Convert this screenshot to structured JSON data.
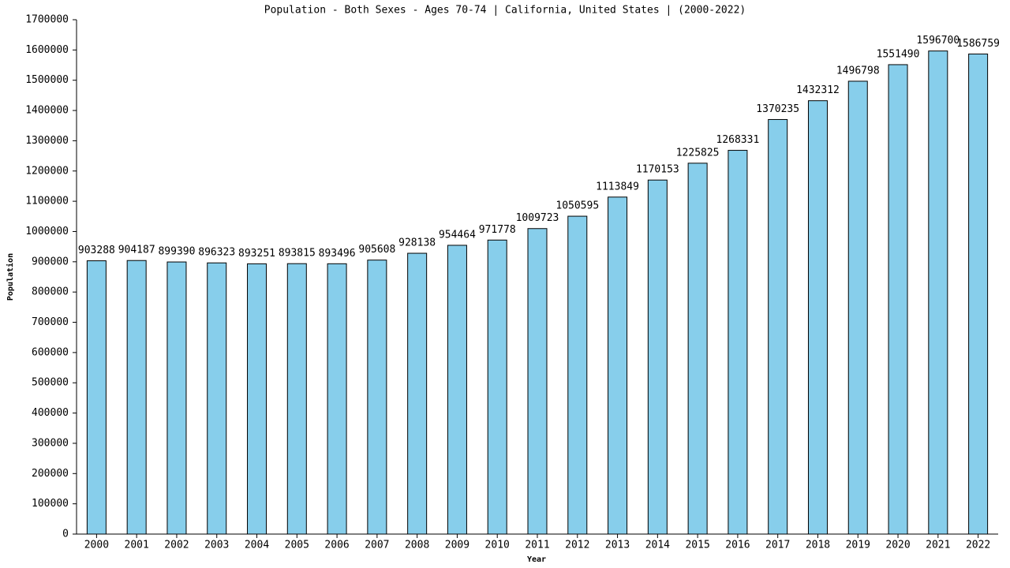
{
  "chart_data": {
    "type": "bar",
    "title": "Population - Both Sexes - Ages 70-74 | California, United States |  (2000-2022)",
    "x_label": "Year",
    "y_label": "Population",
    "categories": [
      "2000",
      "2001",
      "2002",
      "2003",
      "2004",
      "2005",
      "2006",
      "2007",
      "2008",
      "2009",
      "2010",
      "2011",
      "2012",
      "2013",
      "2014",
      "2015",
      "2016",
      "2017",
      "2018",
      "2019",
      "2020",
      "2021",
      "2022"
    ],
    "values": [
      903288,
      904187,
      899390,
      896323,
      893251,
      893815,
      893496,
      905608,
      928138,
      954464,
      971778,
      1009723,
      1050595,
      1113849,
      1170153,
      1225825,
      1268331,
      1370235,
      1432312,
      1496798,
      1551490,
      1596700,
      1586759
    ],
    "color": "#87ceeb",
    "ylim": [
      0,
      1700000
    ],
    "yticks": [
      0,
      100000,
      200000,
      300000,
      400000,
      500000,
      600000,
      700000,
      800000,
      900000,
      1000000,
      1100000,
      1200000,
      1300000,
      1400000,
      1500000,
      1600000,
      1700000
    ],
    "grid": false
  }
}
